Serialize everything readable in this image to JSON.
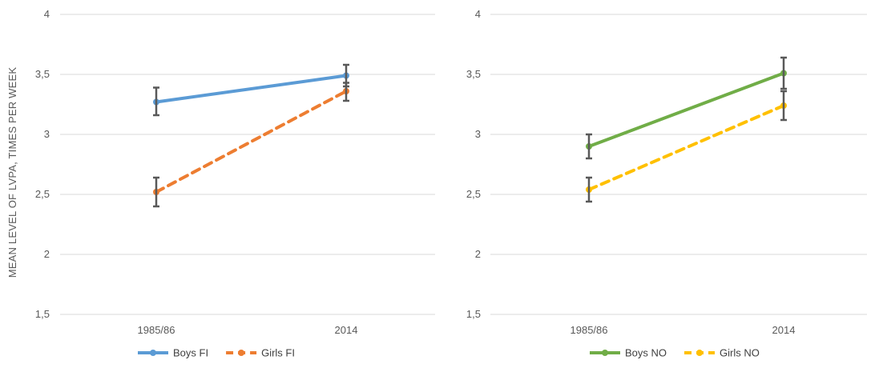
{
  "chart_data": [
    {
      "type": "line",
      "ylabel": "MEAN LEVEL OF LVPA, TIMES PER WEEK",
      "x": [
        "1985/86",
        "2014"
      ],
      "ylim": [
        1.5,
        4
      ],
      "yticks": [
        "1,5",
        "2",
        "2,5",
        "3",
        "3,5",
        "4"
      ],
      "grid": true,
      "legend_position": "bottom",
      "series": [
        {
          "name": "Boys FI",
          "values": [
            3.27,
            3.49
          ],
          "err_low": [
            3.16,
            3.4
          ],
          "err_high": [
            3.39,
            3.58
          ],
          "color": "#5b9bd5",
          "dash": false
        },
        {
          "name": "Girls FI",
          "values": [
            2.52,
            3.36
          ],
          "err_low": [
            2.4,
            3.28
          ],
          "err_high": [
            2.64,
            3.43
          ],
          "color": "#ed7d31",
          "dash": true
        }
      ]
    },
    {
      "type": "line",
      "ylabel": "",
      "x": [
        "1985/86",
        "2014"
      ],
      "ylim": [
        1.5,
        4
      ],
      "yticks": [
        "1,5",
        "2",
        "2,5",
        "3",
        "3,5",
        "4"
      ],
      "grid": true,
      "legend_position": "bottom",
      "series": [
        {
          "name": "Boys NO",
          "values": [
            2.9,
            3.51
          ],
          "err_low": [
            2.8,
            3.38
          ],
          "err_high": [
            3.0,
            3.64
          ],
          "color": "#70ad47",
          "dash": false
        },
        {
          "name": "Girls NO",
          "values": [
            2.54,
            3.24
          ],
          "err_low": [
            2.44,
            3.12
          ],
          "err_high": [
            2.64,
            3.36
          ],
          "color": "#ffc000",
          "dash": true
        }
      ]
    }
  ]
}
